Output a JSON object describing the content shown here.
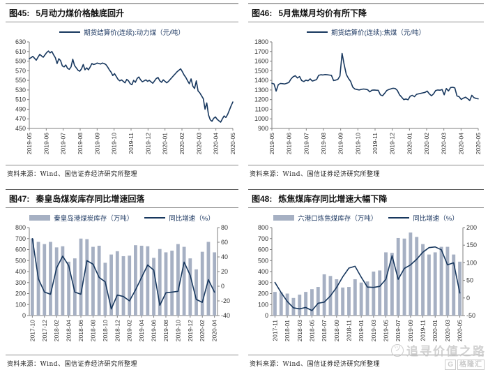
{
  "source_note": "资料来源：Wind、国信证券经济研究所整理",
  "watermark": {
    "slogan": "追寻价值之路",
    "logo_g": "G",
    "logo_text": "格隆汇"
  },
  "colors": {
    "line_navy": "#17375e",
    "bar_gray_blue": "#a6b0c3",
    "axis_gray": "#7f7f7f"
  },
  "chart_data": [
    {
      "id": "fig45",
      "type": "line",
      "fig_label": "图45:",
      "title": "5月动力煤价格触底回升",
      "source": "资料来源：Wind、国信证券经济研究所整理",
      "legend": [
        {
          "swatch": "line",
          "color": "#17375e",
          "label": "期货结算价(连续):动力煤（元/吨）"
        }
      ],
      "ylim": [
        450,
        630
      ],
      "ytick_step": 20,
      "x_tick_labels": [
        "2019-05",
        "2019-06",
        "2019-07",
        "2019-08",
        "2019-09",
        "2019-10",
        "2019-11",
        "2019-12",
        "2020-01",
        "2020-02",
        "2020-03",
        "2020-04",
        "2020-05"
      ],
      "series": [
        {
          "name": "期货结算价(连续):动力煤（元/吨）",
          "color": "#17375e",
          "values": [
            595,
            597,
            600,
            596,
            592,
            598,
            604,
            601,
            598,
            603,
            608,
            611,
            607,
            610,
            603,
            597,
            585,
            595,
            591,
            580,
            578,
            582,
            575,
            573,
            578,
            594,
            581,
            576,
            571,
            569,
            574,
            583,
            572,
            576,
            572,
            578,
            585,
            583,
            584,
            586,
            585,
            584,
            586,
            585,
            583,
            578,
            572,
            567,
            560,
            564,
            558,
            552,
            549,
            551,
            548,
            545,
            552,
            549,
            543,
            541,
            550,
            546,
            554,
            557,
            551,
            547,
            549,
            551,
            548,
            550,
            547,
            544,
            549,
            554,
            556,
            549,
            546,
            551,
            548,
            545,
            548,
            552,
            556,
            560,
            564,
            568,
            571,
            574,
            568,
            561,
            556,
            549,
            543,
            553,
            538,
            533,
            549,
            528,
            524,
            518,
            512,
            490,
            503,
            478,
            468,
            465,
            471,
            474,
            469,
            466,
            463,
            470,
            476,
            473,
            479,
            488,
            497,
            505
          ]
        }
      ]
    },
    {
      "id": "fig46",
      "type": "line",
      "fig_label": "图46:",
      "title": "5月焦煤月均价有所下降",
      "source": "资料来源：Wind、国信证券经济研究所整理",
      "legend": [
        {
          "swatch": "line",
          "color": "#17375e",
          "label": "期货结算价(连续):焦煤（元/吨）"
        }
      ],
      "ylim": [
        900,
        1800
      ],
      "ytick_step": 100,
      "x_tick_labels": [
        "2019-05",
        "2019-06",
        "2019-07",
        "2019-08",
        "2019-09",
        "2019-10",
        "2019-11",
        "2019-12",
        "2020-01",
        "2020-02",
        "2020-03",
        "2020-04",
        "2020-05"
      ],
      "series": [
        {
          "name": "期货结算价(连续):焦煤（元/吨）",
          "color": "#17375e",
          "values": [
            1370,
            1362,
            1288,
            1355,
            1368,
            1366,
            1362,
            1370,
            1378,
            1415,
            1438,
            1448,
            1425,
            1440,
            1398,
            1388,
            1402,
            1396,
            1415,
            1393,
            1400,
            1408,
            1452,
            1458,
            1456,
            1460,
            1458,
            1455,
            1452,
            1398,
            1402,
            1410,
            1445,
            1680,
            1560,
            1460,
            1420,
            1390,
            1330,
            1310,
            1305,
            1300,
            1306,
            1310,
            1308,
            1303,
            1280,
            1298,
            1300,
            1298,
            1296,
            1250,
            1240,
            1265,
            1295,
            1305,
            1312,
            1318,
            1315,
            1295,
            1250,
            1226,
            1200,
            1206,
            1198,
            1235,
            1245,
            1230,
            1255,
            1260,
            1265,
            1270,
            1275,
            1288,
            1260,
            1240,
            1260,
            1295,
            1300,
            1298,
            1305,
            1250,
            1315,
            1290,
            1325,
            1328,
            1322,
            1238,
            1230,
            1202,
            1215,
            1225,
            1210,
            1190,
            1245,
            1220,
            1212,
            1208
          ]
        }
      ]
    },
    {
      "id": "fig47",
      "type": "bar+line",
      "fig_label": "图47:",
      "title": "秦皇岛煤炭库存同比增速回落",
      "source": "资料来源：Wind、国信证券经济研究所整理",
      "legend": [
        {
          "swatch": "bar",
          "color": "#a6b0c3",
          "label": "秦皇岛港煤炭库存（万吨）"
        },
        {
          "swatch": "line",
          "color": "#17375e",
          "label": "同比增速（%）"
        }
      ],
      "ylim_left": [
        0,
        800
      ],
      "ytick_step_left": 100,
      "ylim_right": [
        -40,
        80
      ],
      "ytick_step_right": 20,
      "categories": [
        "2017-10",
        "2017-11",
        "2017-12",
        "2018-01",
        "2018-02",
        "2018-03",
        "2018-04",
        "2018-05",
        "2018-06",
        "2018-07",
        "2018-08",
        "2018-09",
        "2018-10",
        "2018-11",
        "2018-12",
        "2019-01",
        "2019-02",
        "2019-03",
        "2019-04",
        "2019-05",
        "2019-06",
        "2019-07",
        "2019-08",
        "2019-09",
        "2019-10",
        "2019-11",
        "2019-12",
        "2020-01",
        "2020-02",
        "2020-03",
        "2020-04"
      ],
      "x_label_every": 2,
      "bar_series": {
        "name": "秦皇岛港煤炭库存（万吨）",
        "color": "#a6b0c3",
        "values": [
          700,
          670,
          650,
          670,
          620,
          630,
          490,
          520,
          700,
          695,
          625,
          635,
          480,
          555,
          585,
          540,
          545,
          640,
          635,
          630,
          525,
          605,
          575,
          590,
          650,
          625,
          520,
          420,
          580,
          670,
          575
        ]
      },
      "line_series": {
        "name": "同比增速（%）",
        "color": "#17375e",
        "axis": "right",
        "values": [
          65,
          10,
          -8,
          -11,
          25,
          41,
          28,
          -8,
          -11,
          35,
          30,
          12,
          6,
          -31,
          -12,
          -14,
          -20,
          -5,
          12,
          29,
          22,
          -26,
          -9,
          -8,
          -7,
          33,
          15,
          -18,
          -22,
          9,
          -8
        ]
      }
    },
    {
      "id": "fig48",
      "type": "bar+line",
      "fig_label": "图48:",
      "title": "炼焦煤库存同比增速大幅下降",
      "source": "资料来源：Wind、国信证券经济研究所整理",
      "legend": [
        {
          "swatch": "bar",
          "color": "#a6b0c3",
          "label": "六港口炼焦煤库存（万吨）"
        },
        {
          "swatch": "line",
          "color": "#17375e",
          "label": "同比增速（%）"
        }
      ],
      "ylim_left": [
        0,
        800
      ],
      "ytick_step_left": 100,
      "ylim_right": [
        -50,
        200
      ],
      "ytick_step_right": 50,
      "categories": [
        "2017-11",
        "2017-12",
        "2018-01",
        "2018-02",
        "2018-03",
        "2018-04",
        "2018-05",
        "2018-06",
        "2018-07",
        "2018-08",
        "2018-09",
        "2018-10",
        "2018-11",
        "2018-12",
        "2019-01",
        "2019-02",
        "2019-03",
        "2019-04",
        "2019-05",
        "2019-06",
        "2019-07",
        "2019-08",
        "2019-09",
        "2019-10",
        "2019-11",
        "2019-12",
        "2020-01",
        "2020-02",
        "2020-03",
        "2020-04",
        "2020-05"
      ],
      "x_label_every": 2,
      "bar_series": {
        "name": "六港口炼焦煤库存（万吨）",
        "color": "#a6b0c3",
        "values": [
          215,
          210,
          200,
          160,
          190,
          215,
          240,
          260,
          375,
          360,
          330,
          255,
          260,
          330,
          300,
          310,
          400,
          410,
          575,
          570,
          705,
          700,
          755,
          715,
          650,
          555,
          575,
          625,
          625,
          555,
          490
        ]
      },
      "line_series": {
        "name": "同比增速（%）",
        "color": "#17375e",
        "axis": "right",
        "values": [
          44,
          15,
          -10,
          -28,
          -31,
          -27,
          -36,
          -15,
          -12,
          6,
          30,
          60,
          85,
          90,
          59,
          31,
          30,
          33,
          53,
          120,
          53,
          84,
          94,
          110,
          130,
          143,
          145,
          137,
          94,
          100,
          14
        ]
      }
    }
  ]
}
